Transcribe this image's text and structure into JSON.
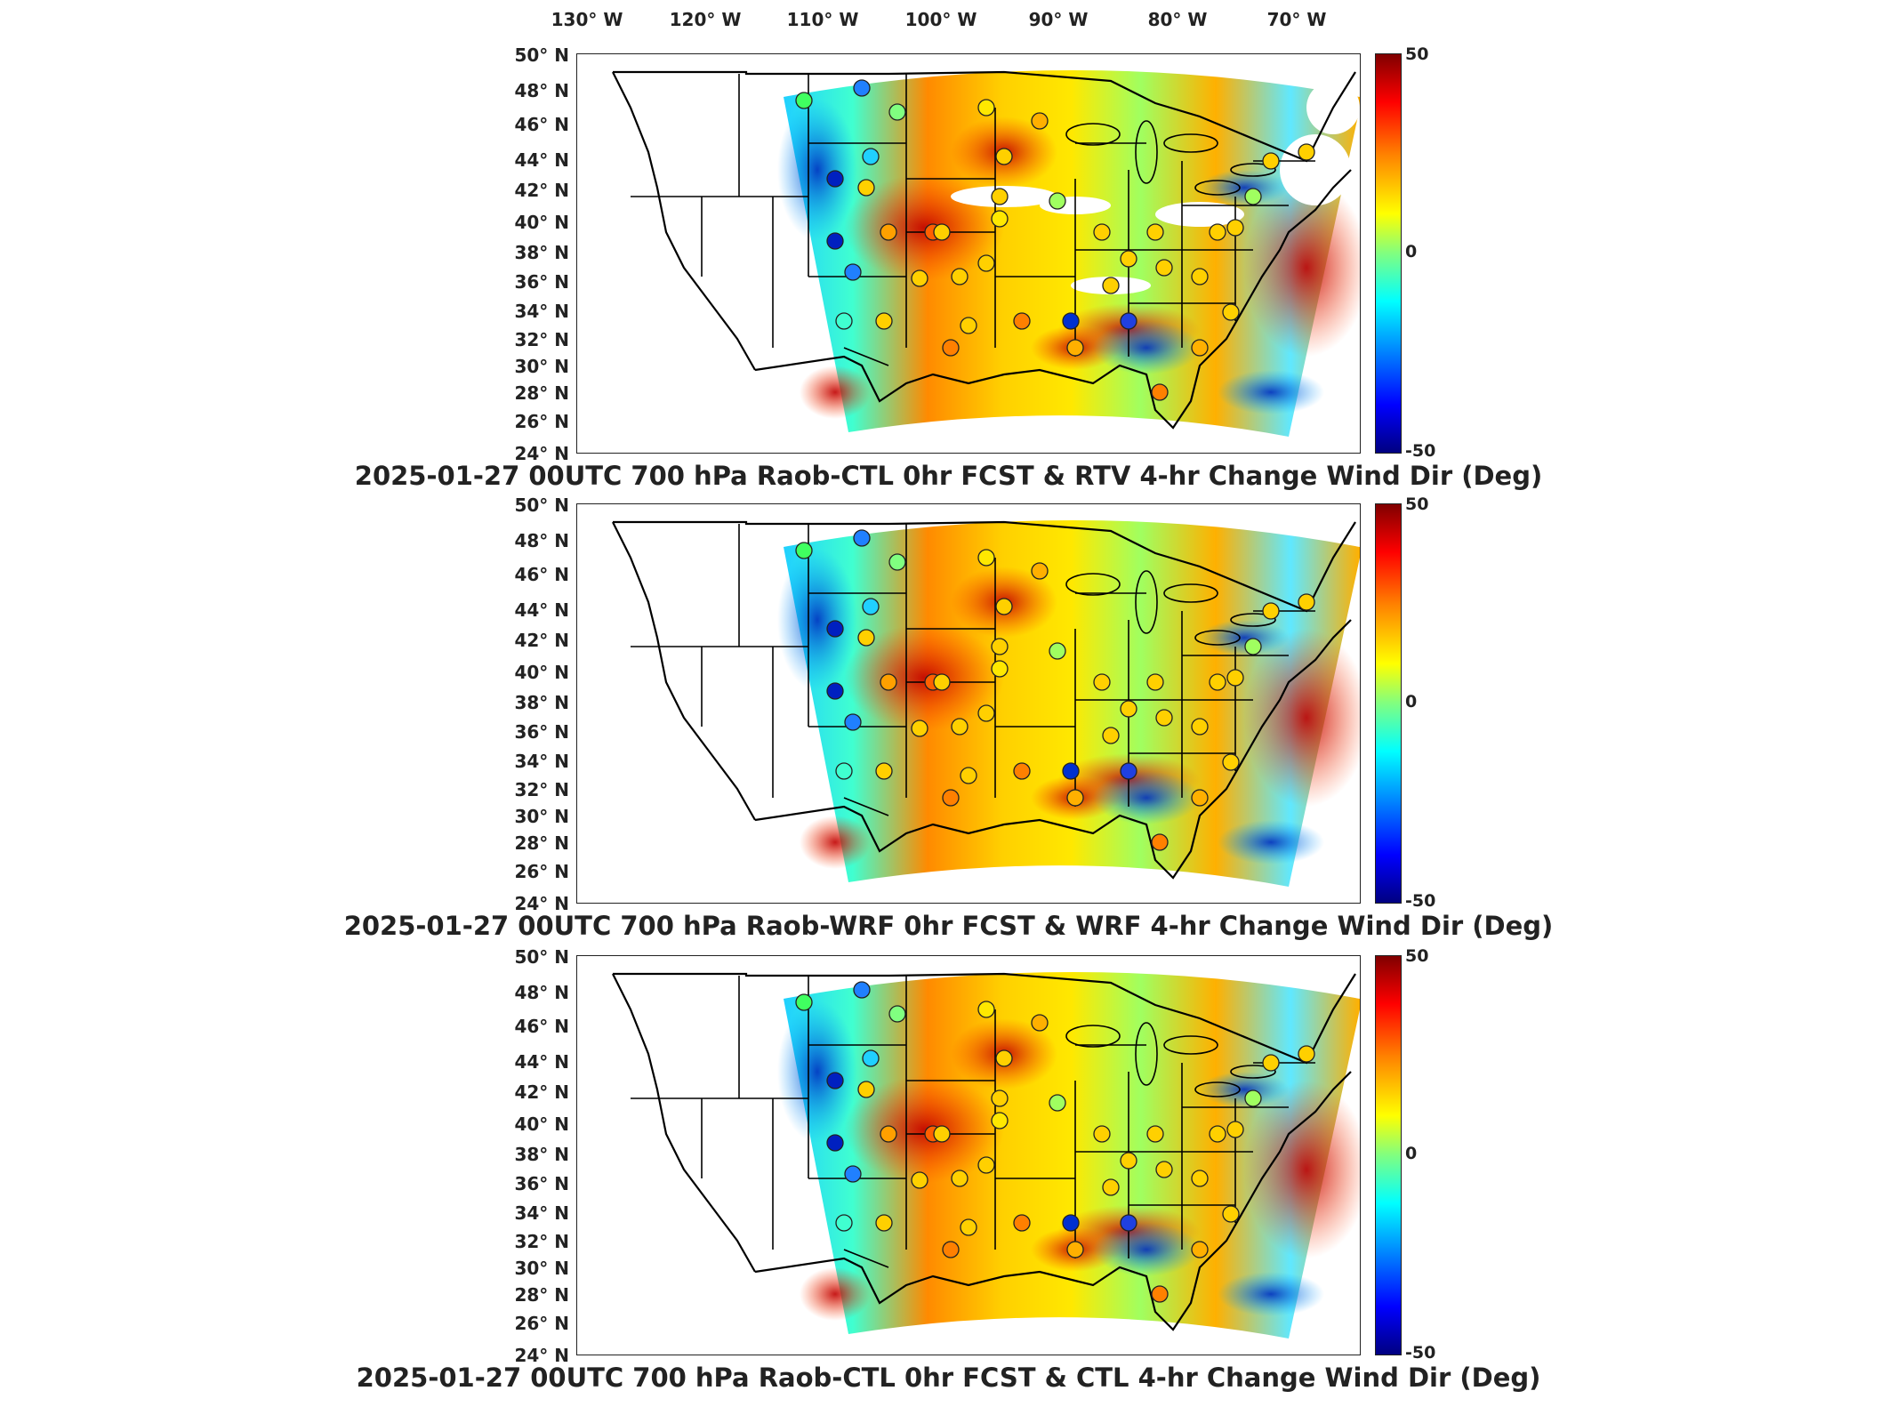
{
  "longitude_labels": [
    "130° W",
    "120° W",
    "110° W",
    "100° W",
    "90° W",
    "80° W",
    "70° W"
  ],
  "latitude_labels": [
    "50° N",
    "48° N",
    "46° N",
    "44° N",
    "42° N",
    "40° N",
    "38° N",
    "36° N",
    "34° N",
    "32° N",
    "30° N",
    "28° N",
    "26° N",
    "24° N"
  ],
  "colorbar": {
    "max_label": "50",
    "mid_label": "0",
    "min_label": "-50",
    "colors": [
      "#800000",
      "#ff0000",
      "#ff8000",
      "#ffff00",
      "#80ff80",
      "#00ffff",
      "#0080ff",
      "#0000ff",
      "#000080"
    ]
  },
  "panels": [
    {
      "title": "2025-01-27 00UTC 700 hPa Raob-CTL 0hr FCST & RTV 4-hr Change Wind Dir (Deg)"
    },
    {
      "title": "2025-01-27 00UTC 700 hPa Raob-WRF 0hr FCST & WRF 4-hr Change Wind Dir (Deg)"
    },
    {
      "title": "2025-01-27 00UTC 700 hPa Raob-CTL 0hr FCST & CTL 4-hr Change Wind Dir (Deg)"
    }
  ]
}
